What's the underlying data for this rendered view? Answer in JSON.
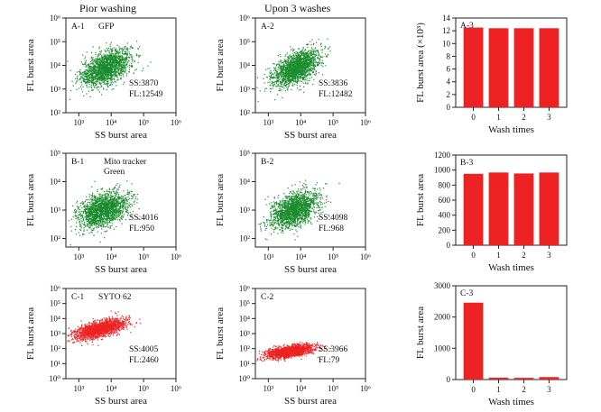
{
  "headings": {
    "col1": "Pior washing",
    "col2": "Upon 3 washes"
  },
  "chart_data": [
    {
      "id": "A-1",
      "type": "scatter",
      "label": "A-1",
      "note": "GFP",
      "ss": "SS:3870",
      "fl": "FL:12549",
      "xlabel": "SS burst area",
      "ylabel": "FL burst area",
      "log": true,
      "xlim_exp": [
        2.6,
        6
      ],
      "ylim_exp": [
        2,
        6
      ],
      "xticks": [
        "10³",
        "10⁴",
        "10⁵",
        "10⁶"
      ],
      "yticks": [
        "10²",
        "10³",
        "10⁴",
        "10⁵",
        "10⁶"
      ],
      "cloud": {
        "center": [
          3.85,
          3.9
        ],
        "spread": [
          0.38,
          0.38
        ],
        "rho": 0.5,
        "n": 1800
      },
      "color": "#1a8c2e"
    },
    {
      "id": "A-2",
      "type": "scatter",
      "label": "A-2",
      "note": "",
      "ss": "SS:3836",
      "fl": "FL:12482",
      "xlabel": "SS burst area",
      "ylabel": "FL burst area",
      "log": true,
      "xlim_exp": [
        2.6,
        6
      ],
      "ylim_exp": [
        2,
        6
      ],
      "xticks": [
        "10³",
        "10⁴",
        "10⁵",
        "10⁶"
      ],
      "yticks": [
        "10²",
        "10³",
        "10⁴",
        "10⁵",
        "10⁶"
      ],
      "cloud": {
        "center": [
          3.85,
          3.88
        ],
        "spread": [
          0.36,
          0.38
        ],
        "rho": 0.55,
        "n": 1800
      },
      "color": "#1a8c2e"
    },
    {
      "id": "A-3",
      "type": "bar",
      "label": "A-3",
      "xlabel": "Wash times",
      "ylabel": "FL burst area (×10³)",
      "categories": [
        "0",
        "1",
        "2",
        "3"
      ],
      "values": [
        12.5,
        12.4,
        12.4,
        12.4
      ],
      "ylim": [
        0,
        14
      ],
      "yticks": [
        "0",
        "2",
        "4",
        "6",
        "8",
        "10",
        "12",
        "14"
      ],
      "color": "#ee2222"
    },
    {
      "id": "B-1",
      "type": "scatter",
      "label": "B-1",
      "note": "Mito tracker",
      "note2": "Green",
      "ss": "SS:4016",
      "fl": "FL:950",
      "xlabel": "SS burst area",
      "ylabel": "FL burst area",
      "log": true,
      "xlim_exp": [
        2.6,
        6
      ],
      "ylim_exp": [
        1.7,
        5
      ],
      "xticks": [
        "10³",
        "10⁴",
        "10⁵",
        "10⁶"
      ],
      "yticks": [
        "10²",
        "10³",
        "10⁴",
        "10⁵"
      ],
      "cloud": {
        "center": [
          3.75,
          3.0
        ],
        "spread": [
          0.38,
          0.32
        ],
        "rho": 0.4,
        "n": 1800
      },
      "color": "#1a8c2e"
    },
    {
      "id": "B-2",
      "type": "scatter",
      "label": "B-2",
      "note": "",
      "ss": "SS:4098",
      "fl": "FL:968",
      "xlabel": "SS burst area",
      "ylabel": "FL burst area",
      "log": true,
      "xlim_exp": [
        2.6,
        6
      ],
      "ylim_exp": [
        1.7,
        5
      ],
      "xticks": [
        "10³",
        "10⁴",
        "10⁵",
        "10⁶"
      ],
      "yticks": [
        "10²",
        "10³",
        "10⁴",
        "10⁵"
      ],
      "cloud": {
        "center": [
          3.8,
          3.0
        ],
        "spread": [
          0.36,
          0.32
        ],
        "rho": 0.45,
        "n": 1800
      },
      "color": "#1a8c2e"
    },
    {
      "id": "B-3",
      "type": "bar",
      "label": "B-3",
      "xlabel": "Wash times",
      "ylabel": "FL burst area",
      "categories": [
        "0",
        "1",
        "2",
        "3"
      ],
      "values": [
        950,
        968,
        955,
        968
      ],
      "ylim": [
        0,
        1200
      ],
      "yticks": [
        "0",
        "200",
        "400",
        "600",
        "800",
        "1000",
        "1200"
      ],
      "color": "#ee2222"
    },
    {
      "id": "C-1",
      "type": "scatter",
      "label": "C-1",
      "note": "SYTO 62",
      "ss": "SS:4005",
      "fl": "FL:2460",
      "xlabel": "SS burst area",
      "ylabel": "FL burst area",
      "log": true,
      "xlim_exp": [
        2.6,
        6
      ],
      "ylim_exp": [
        0,
        6
      ],
      "xticks": [
        "10³",
        "10⁴",
        "10⁵",
        "10⁶"
      ],
      "yticks": [
        "10⁰",
        "10¹",
        "10²",
        "10³",
        "10⁴",
        "10⁵",
        "10⁶"
      ],
      "cloud": {
        "center": [
          3.65,
          3.3
        ],
        "spread": [
          0.38,
          0.32
        ],
        "rho": 0.6,
        "n": 1800
      },
      "color": "#ee2222"
    },
    {
      "id": "C-2",
      "type": "scatter",
      "label": "C-2",
      "note": "",
      "ss": "SS:3966",
      "fl": "FL:79",
      "xlabel": "SS burst area",
      "ylabel": "FL burst area",
      "log": true,
      "xlim_exp": [
        2.6,
        6
      ],
      "ylim_exp": [
        0,
        6
      ],
      "xticks": [
        "10³",
        "10⁴",
        "10⁵",
        "10⁶"
      ],
      "yticks": [
        "10⁰",
        "10¹",
        "10²",
        "10³",
        "10⁴",
        "10⁵",
        "10⁶"
      ],
      "cloud": {
        "center": [
          3.65,
          1.8
        ],
        "spread": [
          0.36,
          0.22
        ],
        "rho": 0.5,
        "n": 1800
      },
      "color": "#ee2222"
    },
    {
      "id": "C-3",
      "type": "bar",
      "label": "C-3",
      "xlabel": "Wash times",
      "ylabel": "FL burst area",
      "categories": [
        "0",
        "1",
        "2",
        "3"
      ],
      "values": [
        2460,
        60,
        55,
        79
      ],
      "ylim": [
        0,
        3000
      ],
      "yticks": [
        "0",
        "1000",
        "2000",
        "3000"
      ],
      "color": "#ee2222"
    }
  ]
}
